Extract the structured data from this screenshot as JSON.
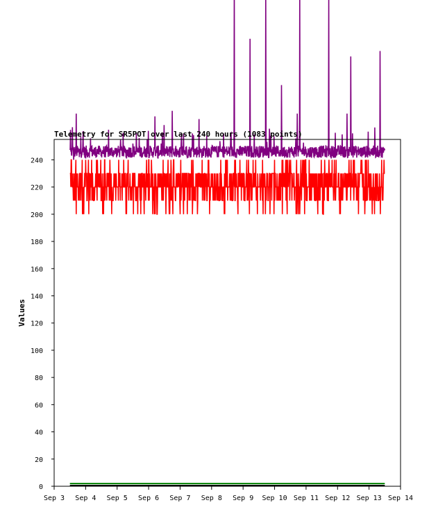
{
  "chart_data": {
    "type": "line",
    "title": "Telemetry for SR5POT over last 240 hours (1083 points)",
    "xlabel": "",
    "ylabel": "Values",
    "x_ticks": [
      "Sep 3",
      "Sep 4",
      "Sep 5",
      "Sep 6",
      "Sep 7",
      "Sep 8",
      "Sep 9",
      "Sep 10",
      "Sep 11",
      "Sep 12",
      "Sep 13",
      "Sep 14"
    ],
    "y_ticks": [
      0,
      20,
      40,
      60,
      80,
      100,
      120,
      140,
      160,
      180,
      200,
      220,
      240
    ],
    "xlim": [
      "Sep 3",
      "Sep 14"
    ],
    "ylim": [
      0,
      255
    ],
    "grid": false,
    "legend": "none",
    "series": [
      {
        "color": "#800080",
        "baseline": 246,
        "x_days": [
          3.5,
          3.52,
          3.55,
          3.58,
          3.62,
          3.65,
          3.7,
          3.8,
          3.9,
          4.0,
          4.1,
          4.2,
          4.3,
          4.4,
          4.5,
          4.6,
          4.7,
          4.8,
          4.9,
          5.0,
          5.1,
          5.2,
          5.3,
          5.4,
          5.5,
          5.6,
          5.7,
          5.8,
          5.9,
          6.0,
          6.1,
          6.2,
          6.25,
          6.3,
          6.4,
          6.5,
          6.6,
          6.7,
          6.75,
          6.8,
          6.9,
          7.0,
          7.1,
          7.2,
          7.3,
          7.4,
          7.5,
          7.6,
          7.7,
          7.75,
          7.8,
          7.9,
          8.0,
          8.1,
          8.2,
          8.3,
          8.4,
          8.5,
          8.6,
          8.7,
          8.72,
          8.74,
          8.8,
          8.9,
          9.0,
          9.1,
          9.2,
          9.22,
          9.24,
          9.3,
          9.4,
          9.5,
          9.6,
          9.7,
          9.72,
          9.74,
          9.8,
          9.9,
          10.0,
          10.1,
          10.2,
          10.22,
          10.24,
          10.3,
          10.4,
          10.5,
          10.6,
          10.7,
          10.72,
          10.74,
          10.8,
          10.9,
          11.0,
          11.1,
          11.2,
          11.3,
          11.4,
          11.5,
          11.6,
          11.7,
          11.72,
          11.74,
          11.8,
          11.9,
          12.0,
          12.1,
          12.2,
          12.3,
          12.4,
          12.42,
          12.44,
          12.5,
          12.6,
          12.7,
          12.8,
          12.9,
          13.0,
          13.1,
          13.2,
          13.3,
          13.35,
          13.37,
          13.4,
          13.5
        ],
        "values": [
          248,
          262,
          244,
          264,
          240,
          243,
          274,
          242,
          248,
          241,
          244,
          250,
          243,
          248,
          246,
          242,
          248,
          244,
          246,
          243,
          250,
          245,
          241,
          249,
          252,
          244,
          256,
          242,
          248,
          246,
          243,
          272,
          245,
          241,
          252,
          247,
          243,
          250,
          276,
          244,
          248,
          242,
          246,
          250,
          243,
          248,
          245,
          270,
          242,
          247,
          245,
          249,
          244,
          248,
          243,
          247,
          249,
          245,
          250,
          244,
          375,
          246,
          248,
          243,
          249,
          244,
          247,
          329,
          246,
          243,
          248,
          244,
          250,
          245,
          365,
          247,
          243,
          248,
          244,
          249,
          246,
          295,
          243,
          247,
          245,
          248,
          243,
          250,
          274,
          247,
          365,
          244,
          248,
          242,
          246,
          249,
          244,
          247,
          243,
          250,
          360,
          245,
          241,
          249,
          246,
          250,
          243,
          274,
          247,
          316,
          244,
          250,
          245,
          248,
          243,
          246,
          249,
          244,
          248,
          246,
          320,
          245,
          243,
          247
        ]
      },
      {
        "color": "#ff0000",
        "baseline": 225,
        "x_days": [
          3.5,
          3.55,
          3.6,
          3.62,
          3.65,
          3.68,
          3.7,
          3.75,
          3.8,
          3.85,
          3.9,
          3.95,
          4.0,
          4.05,
          4.1,
          4.15,
          4.2,
          4.3,
          4.4,
          4.5,
          4.55,
          4.6,
          4.65,
          4.7,
          4.75,
          4.8,
          4.9,
          5.0,
          5.05,
          5.1,
          5.15,
          5.2,
          5.3,
          5.35,
          5.4,
          5.5,
          5.6,
          5.7,
          5.75,
          5.8,
          5.85,
          5.9,
          6.0,
          6.05,
          6.1,
          6.2,
          6.3,
          6.4,
          6.45,
          6.5,
          6.55,
          6.6,
          6.7,
          6.75,
          6.8,
          6.85,
          6.9,
          7.0,
          7.05,
          7.1,
          7.2,
          7.3,
          7.4,
          7.5,
          7.55,
          7.6,
          7.7,
          7.8,
          7.85,
          7.9,
          8.0,
          8.1,
          8.2,
          8.3,
          8.4,
          8.5,
          8.6,
          8.7,
          8.75,
          8.8,
          8.9,
          9.0,
          9.05,
          9.1,
          9.2,
          9.3,
          9.4,
          9.5,
          9.55,
          9.6,
          9.7,
          9.8,
          9.9,
          10.0,
          10.05,
          10.1,
          10.2,
          10.3,
          10.4,
          10.5,
          10.55,
          10.6,
          10.7,
          10.8,
          10.9,
          11.0,
          11.05,
          11.1,
          11.2,
          11.3,
          11.4,
          11.5,
          11.55,
          11.6,
          11.7,
          11.8,
          11.9,
          12.0,
          12.05,
          12.1,
          12.2,
          12.3,
          12.4,
          12.5,
          12.55,
          12.6,
          12.7,
          12.8,
          12.9,
          13.0,
          13.05,
          13.1,
          13.2,
          13.3,
          13.35,
          13.4,
          13.45,
          13.5
        ],
        "values": [
          230,
          240,
          220,
          230,
          210,
          230,
          200,
          220,
          230,
          210,
          200,
          220,
          240,
          210,
          200,
          230,
          210,
          220,
          230,
          210,
          220,
          240,
          220,
          230,
          210,
          220,
          230,
          220,
          240,
          210,
          230,
          220,
          200,
          240,
          220,
          230,
          210,
          220,
          200,
          230,
          210,
          220,
          240,
          220,
          230,
          210,
          220,
          230,
          210,
          220,
          200,
          230,
          210,
          220,
          240,
          210,
          230,
          200,
          220,
          210,
          230,
          220,
          210,
          230,
          200,
          220,
          240,
          220,
          210,
          230,
          220,
          210,
          230,
          220,
          200,
          240,
          220,
          230,
          210,
          220,
          240,
          220,
          210,
          230,
          200,
          220,
          240,
          220,
          210,
          230,
          220,
          210,
          230,
          240,
          220,
          210,
          230,
          220,
          200,
          230,
          210,
          220,
          240,
          200,
          230,
          210,
          220,
          240,
          220,
          210,
          230,
          220,
          200,
          230,
          210,
          220,
          240,
          220,
          210,
          230,
          220,
          210,
          230,
          240,
          220,
          210,
          230,
          220,
          210,
          230,
          220,
          200,
          230,
          210,
          220,
          240,
          220,
          230
        ]
      },
      {
        "color": "#008000",
        "baseline": 2,
        "x_days": [
          3.5,
          13.5
        ],
        "values": [
          2,
          2
        ]
      },
      {
        "color": "#000000",
        "baseline": 0,
        "x_days": [
          3.5,
          13.5
        ],
        "values": [
          0.5,
          0.5
        ]
      }
    ]
  }
}
